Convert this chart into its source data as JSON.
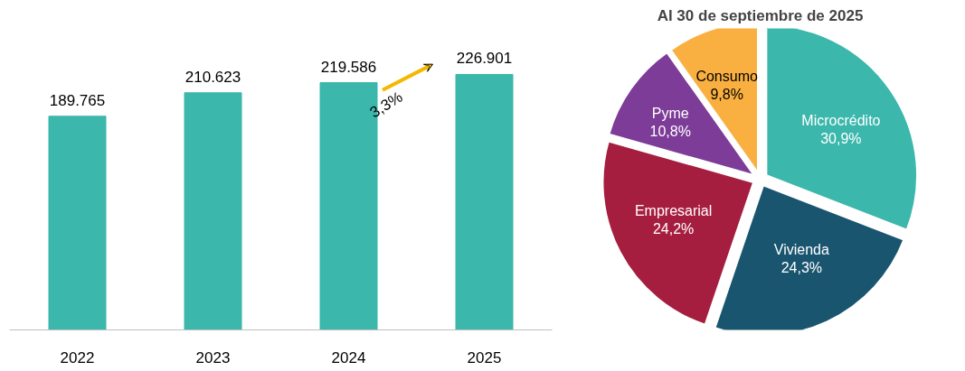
{
  "chart_data": [
    {
      "type": "bar",
      "categories": [
        "2022",
        "2023",
        "2024",
        "2025"
      ],
      "values": [
        189765,
        210623,
        219586,
        226901
      ],
      "value_labels": [
        "189.765",
        "210.623",
        "219.586",
        "226.901"
      ],
      "color": "#3bb7ac",
      "annotations": [
        "3,3%"
      ],
      "grid": false,
      "tick_labels": "x"
    },
    {
      "type": "pie",
      "title": "Al 30 de septiembre de 2025",
      "categories": [
        "Microcrédito",
        "Vivienda",
        "Empresarial",
        "Pyme",
        "Consumo"
      ],
      "values": [
        30.9,
        24.3,
        24.2,
        10.8,
        9.8
      ],
      "value_labels": [
        "30,9%",
        "24,3%",
        "24,2%",
        "10,8%",
        "9,8%"
      ],
      "colors": [
        "#3bb7ac",
        "#1a5570",
        "#a61e3f",
        "#7d3c98",
        "#f9b040"
      ]
    }
  ]
}
